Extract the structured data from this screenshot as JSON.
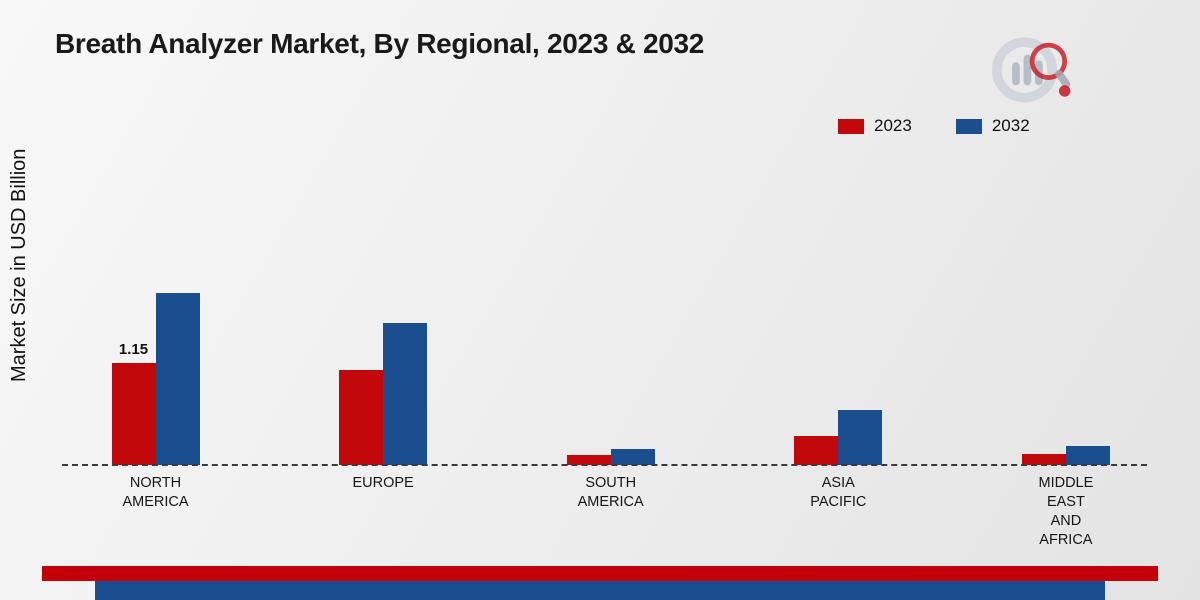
{
  "title": "Breath Analyzer Market, By Regional, 2023 & 2032",
  "y_axis_label": "Market Size in USD Billion",
  "legend": {
    "items": [
      {
        "label": "2023",
        "color": "#c3080c"
      },
      {
        "label": "2032",
        "color": "#1b4e8e"
      }
    ]
  },
  "chart_data": {
    "type": "bar",
    "title": "Breath Analyzer Market, By Regional, 2023 & 2032",
    "ylabel": "Market Size in USD Billion",
    "xlabel": "",
    "ylim": [
      0,
      2.2
    ],
    "grid": false,
    "legend_position": "top-right",
    "baseline_style": "dashed",
    "categories": [
      "NORTH\nAMERICA",
      "EUROPE",
      "SOUTH\nAMERICA",
      "ASIA\nPACIFIC",
      "MIDDLE\nEAST\nAND\nAFRICA"
    ],
    "series": [
      {
        "name": "2023",
        "color": "#c3080c",
        "values": [
          1.15,
          1.07,
          0.11,
          0.33,
          0.13
        ]
      },
      {
        "name": "2032",
        "color": "#1b4e8e",
        "values": [
          1.94,
          1.6,
          0.18,
          0.62,
          0.21
        ]
      }
    ],
    "bar_labels": [
      {
        "series": 0,
        "category": 0,
        "text": "1.15"
      }
    ]
  },
  "footer": {
    "red_bar_color": "#c3000a",
    "blue_bar_color": "#1b4e8e"
  },
  "brand": {
    "logo_name": "market-research-magnifier-logo"
  }
}
